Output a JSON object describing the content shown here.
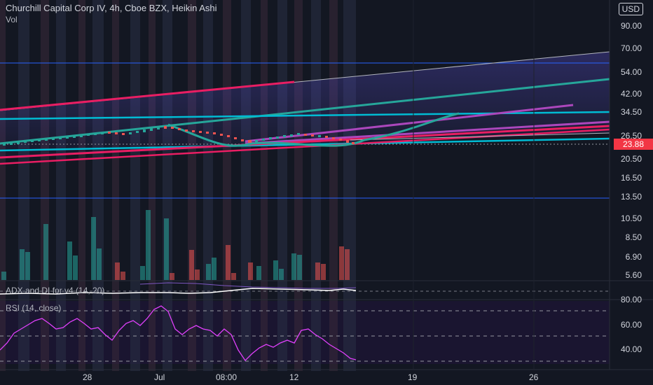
{
  "header": {
    "title": "Churchill Capital Corp IV, 4h, Cboe BZX, Heikin Ashi",
    "volume_label": "Vol",
    "adx_label": "ADX and DI for v4 (14, 20)",
    "rsi_label": "RSI (14, close)"
  },
  "price_axis": {
    "currency": "USD",
    "ticks": [
      "90.00",
      "70.00",
      "54.00",
      "42.00",
      "34.50",
      "26.50",
      "20.50",
      "16.50",
      "13.50",
      "10.50",
      "8.50",
      "6.90",
      "5.60"
    ],
    "current_price": "23.88"
  },
  "rsi_axis": {
    "ticks": [
      "80.00",
      "60.00",
      "40.00"
    ]
  },
  "time_axis": {
    "labels": [
      "28",
      "Jul",
      "08:00",
      "12",
      "19",
      "26"
    ]
  },
  "colors": {
    "background": "#131722",
    "up": "#26a69a",
    "down": "#ef5350",
    "price_tag": "#f23645"
  }
}
